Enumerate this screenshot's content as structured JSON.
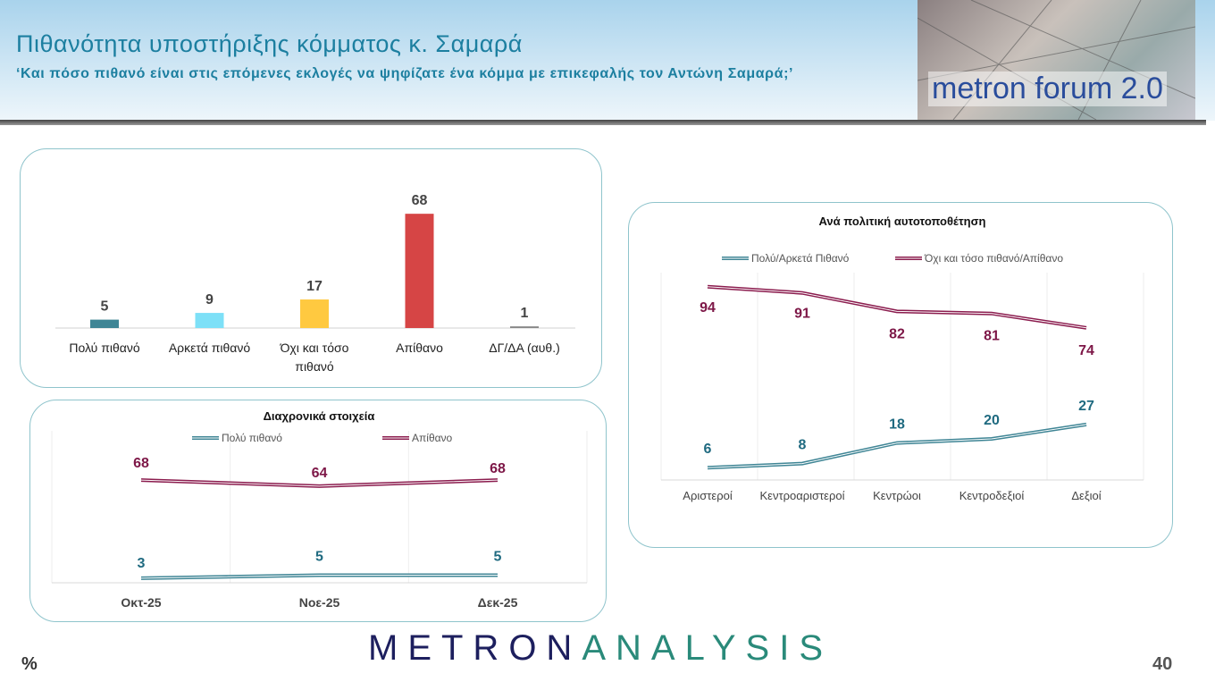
{
  "header": {
    "title": "Πιθανότητα υποστήριξης κόμματος κ. Σαμαρά",
    "subtitle": "‘Και πόσο πιθανό είναι στις επόμενες εκλογές να ψηφίζατε ένα κόμμα με επικεφαλής τον Αντώνη Σαμαρά;’",
    "badge": "metron forum 2.0"
  },
  "footer": {
    "logo_a": "METRON",
    "logo_b": "ANALYSIS",
    "unit": "%",
    "page_number": "40"
  },
  "colors": {
    "teal": "#3f8595",
    "maroon": "#8b1c4e",
    "red": "#d64545",
    "yellow": "#ffc940",
    "cyan": "#7de0f7"
  },
  "chart_data": [
    {
      "type": "bar",
      "title": "",
      "categories": [
        "Πολύ πιθανό",
        "Αρκετά πιθανό",
        "Όχι και τόσο πιθανό",
        "Απίθανο",
        "ΔΓ/ΔΑ (αυθ.)"
      ],
      "values": [
        5,
        9,
        17,
        68,
        1
      ],
      "colors": [
        "#3f8595",
        "#7de0f7",
        "#ffc940",
        "#d64545",
        "#888888"
      ],
      "ylim": [
        0,
        70
      ]
    },
    {
      "type": "line",
      "title": "Διαχρονικά στοιχεία",
      "categories": [
        "Οκτ-25",
        "Νοε-25",
        "Δεκ-25"
      ],
      "series": [
        {
          "name": "Πολύ πιθανό",
          "values": [
            3,
            5,
            5
          ],
          "color": "#3f8595"
        },
        {
          "name": "Απίθανο",
          "values": [
            68,
            64,
            68
          ],
          "color": "#8b1c4e"
        }
      ],
      "legend": "top",
      "ylim": [
        0,
        80
      ]
    },
    {
      "type": "line",
      "title": "Ανά πολιτική αυτοτοποθέτηση",
      "categories": [
        "Αριστεροί",
        "Κεντροαριστεροί",
        "Κεντρώοι",
        "Κεντροδεξιοί",
        "Δεξιοί"
      ],
      "series": [
        {
          "name": "Πολύ/Αρκετά Πιθανό",
          "values": [
            6,
            8,
            18,
            20,
            27
          ],
          "color": "#3f8595"
        },
        {
          "name": "Όχι και τόσο πιθανό/Απίθανο",
          "values": [
            94,
            91,
            82,
            81,
            74
          ],
          "color": "#8b1c4e"
        }
      ],
      "legend": "top",
      "ylim": [
        0,
        100
      ]
    }
  ]
}
